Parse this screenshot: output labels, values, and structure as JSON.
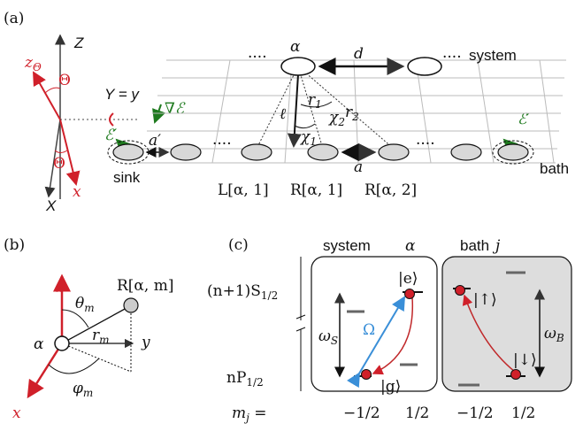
{
  "panel_a": {
    "label": "(a)",
    "axis_Z": "Z",
    "axis_X": "X",
    "axis_z_theta": {
      "main": "z",
      "sub": "Θ"
    },
    "theta_top": "Θ",
    "theta_bottom": "Θ",
    "axis_x": "x",
    "axis_Y": "Y = y",
    "gradient": "∇ℰ",
    "field_left": "ℰ′",
    "field_right": "ℰ′",
    "a_prime": "a′",
    "sink": "sink",
    "alpha": "α",
    "d": "d",
    "system": "system",
    "ell": "ℓ",
    "r1": {
      "main": "r",
      "sub": "1"
    },
    "r2": {
      "main": "r",
      "sub": "2"
    },
    "chi2": {
      "main": "χ",
      "sub": "2"
    },
    "chi1": {
      "main": "χ",
      "sub": "1"
    },
    "a": "a",
    "bath": "bath",
    "L1": "L[α, 1]",
    "R1": "R[α, 1]",
    "R2": "R[α, 2]",
    "dots": "····"
  },
  "panel_b": {
    "label": "(b)",
    "z": "z",
    "R": "R[α, m]",
    "theta": {
      "main": "θ",
      "sub": "m"
    },
    "r": {
      "main": "r",
      "sub": "m"
    },
    "y": "y",
    "alpha": "α",
    "phi": {
      "main": "φ",
      "sub": "m"
    },
    "x": "x"
  },
  "panel_c": {
    "label": "(c)",
    "system": "system",
    "alpha": "α",
    "bath": "bath",
    "j": "j",
    "upper_level": {
      "main": "(n+1)S",
      "sub": "1/2"
    },
    "lower_level": {
      "main": "nP",
      "sub": "1/2"
    },
    "omega_S": {
      "main": "ω",
      "sub": "S"
    },
    "Omega": "Ω",
    "e": "|e⟩",
    "g": "|g⟩",
    "up": "|↑⟩",
    "down": "|↓⟩",
    "omega_B": {
      "main": "ω",
      "sub": "B"
    },
    "mj": {
      "main": "m",
      "sub": "j",
      "rest": " ="
    },
    "mj_values": [
      "−1/2",
      "1/2",
      "−1/2",
      "1/2"
    ]
  }
}
